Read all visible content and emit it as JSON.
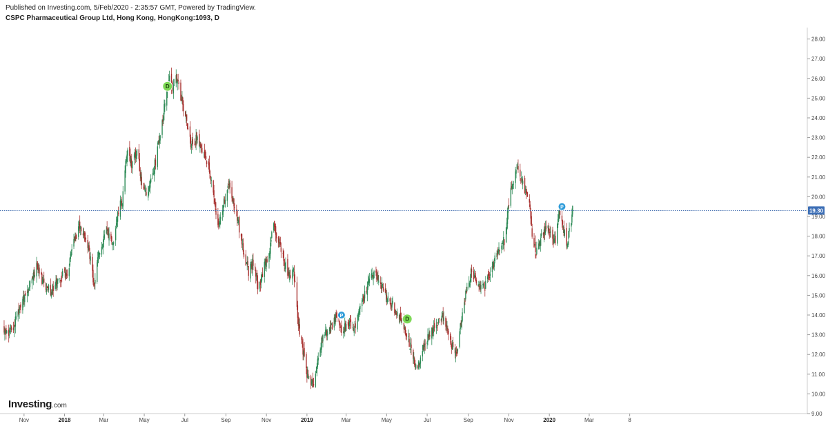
{
  "header": {
    "published": "Published on Investing.com, 5/Feb/2020 - 2:35:57 GMT, Powered by TradingView.",
    "symbol": "CSPC Pharmaceutical Group Ltd, Hong Kong, HongKong:1093, D"
  },
  "logo": {
    "name": "Investing",
    "suffix": ".com"
  },
  "colors": {
    "up": "#2e8b57",
    "down": "#a8312f",
    "price_line": "#2f5fa8",
    "price_label_bg": "#3d6fb6",
    "dividend_marker": "#7ed957",
    "split_marker": "#2e9bd9",
    "axis": "#cccccc"
  },
  "chart_data": {
    "type": "candlestick",
    "timeframe": "D",
    "ylim": [
      9.0,
      28.6
    ],
    "y_ticks": [
      "9.00",
      "10.00",
      "11.00",
      "12.00",
      "13.00",
      "14.00",
      "15.00",
      "16.00",
      "17.00",
      "18.00",
      "19.00",
      "20.00",
      "21.00",
      "22.00",
      "23.00",
      "24.00",
      "25.00",
      "26.00",
      "27.00",
      "28.00"
    ],
    "x_ticks": [
      {
        "label": "Nov",
        "bold": false
      },
      {
        "label": "2018",
        "bold": true
      },
      {
        "label": "Mar",
        "bold": false
      },
      {
        "label": "May",
        "bold": false
      },
      {
        "label": "Jul",
        "bold": false
      },
      {
        "label": "Sep",
        "bold": false
      },
      {
        "label": "Nov",
        "bold": false
      },
      {
        "label": "2019",
        "bold": true
      },
      {
        "label": "Mar",
        "bold": false
      },
      {
        "label": "May",
        "bold": false
      },
      {
        "label": "Jul",
        "bold": false
      },
      {
        "label": "Sep",
        "bold": false
      },
      {
        "label": "Nov",
        "bold": false
      },
      {
        "label": "2020",
        "bold": true
      },
      {
        "label": "Mar",
        "bold": false
      },
      {
        "label": "8",
        "bold": false
      }
    ],
    "last_price": "19.30",
    "price_path": [
      [
        "2017-10-01",
        13.4
      ],
      [
        "2017-10-10",
        13.0
      ],
      [
        "2017-10-25",
        14.2
      ],
      [
        "2017-11-08",
        15.5
      ],
      [
        "2017-11-20",
        16.4
      ],
      [
        "2017-12-01",
        15.6
      ],
      [
        "2017-12-12",
        15.2
      ],
      [
        "2017-12-22",
        15.8
      ],
      [
        "2018-01-05",
        16.2
      ],
      [
        "2018-01-15",
        17.6
      ],
      [
        "2018-01-24",
        18.5
      ],
      [
        "2018-02-02",
        17.9
      ],
      [
        "2018-02-09",
        16.9
      ],
      [
        "2018-02-14",
        15.6
      ],
      [
        "2018-02-22",
        17.2
      ],
      [
        "2018-03-05",
        18.2
      ],
      [
        "2018-03-15",
        17.6
      ],
      [
        "2018-03-22",
        19.3
      ],
      [
        "2018-03-29",
        19.8
      ],
      [
        "2018-04-05",
        22.3
      ],
      [
        "2018-04-12",
        21.6
      ],
      [
        "2018-04-20",
        22.4
      ],
      [
        "2018-04-28",
        20.6
      ],
      [
        "2018-05-05",
        20.1
      ],
      [
        "2018-05-12",
        21.0
      ],
      [
        "2018-05-20",
        22.1
      ],
      [
        "2018-05-28",
        23.8
      ],
      [
        "2018-06-03",
        25.2
      ],
      [
        "2018-06-08",
        26.1
      ],
      [
        "2018-06-13",
        25.4
      ],
      [
        "2018-06-18",
        26.0
      ],
      [
        "2018-06-25",
        25.1
      ],
      [
        "2018-07-02",
        24.2
      ],
      [
        "2018-07-10",
        22.6
      ],
      [
        "2018-07-20",
        23.0
      ],
      [
        "2018-07-28",
        22.4
      ],
      [
        "2018-08-05",
        21.6
      ],
      [
        "2018-08-12",
        20.3
      ],
      [
        "2018-08-20",
        18.7
      ],
      [
        "2018-08-28",
        19.5
      ],
      [
        "2018-09-05",
        20.8
      ],
      [
        "2018-09-12",
        19.9
      ],
      [
        "2018-09-20",
        18.6
      ],
      [
        "2018-09-27",
        17.3
      ],
      [
        "2018-10-05",
        16.2
      ],
      [
        "2018-10-13",
        16.8
      ],
      [
        "2018-10-20",
        15.2
      ],
      [
        "2018-10-28",
        16.4
      ],
      [
        "2018-11-04",
        17.1
      ],
      [
        "2018-11-12",
        18.6
      ],
      [
        "2018-11-20",
        17.6
      ],
      [
        "2018-11-28",
        16.7
      ],
      [
        "2018-12-05",
        15.9
      ],
      [
        "2018-12-12",
        16.3
      ],
      [
        "2018-12-18",
        13.8
      ],
      [
        "2018-12-24",
        12.6
      ],
      [
        "2019-01-01",
        11.0
      ],
      [
        "2019-01-06",
        10.7
      ],
      [
        "2019-01-11",
        10.3
      ],
      [
        "2019-01-17",
        11.8
      ],
      [
        "2019-01-25",
        12.9
      ],
      [
        "2019-02-05",
        13.3
      ],
      [
        "2019-02-14",
        14.0
      ],
      [
        "2019-02-22",
        13.2
      ],
      [
        "2019-03-04",
        13.6
      ],
      [
        "2019-03-14",
        13.4
      ],
      [
        "2019-03-25",
        14.6
      ],
      [
        "2019-04-04",
        15.6
      ],
      [
        "2019-04-12",
        16.2
      ],
      [
        "2019-04-20",
        15.8
      ],
      [
        "2019-04-28",
        15.1
      ],
      [
        "2019-05-10",
        14.5
      ],
      [
        "2019-05-20",
        13.9
      ],
      [
        "2019-05-28",
        13.3
      ],
      [
        "2019-06-06",
        12.4
      ],
      [
        "2019-06-14",
        11.4
      ],
      [
        "2019-06-20",
        11.7
      ],
      [
        "2019-06-28",
        12.6
      ],
      [
        "2019-07-08",
        13.2
      ],
      [
        "2019-07-18",
        13.6
      ],
      [
        "2019-07-26",
        13.9
      ],
      [
        "2019-08-05",
        12.6
      ],
      [
        "2019-08-14",
        12.0
      ],
      [
        "2019-08-22",
        13.8
      ],
      [
        "2019-08-29",
        15.2
      ],
      [
        "2019-09-05",
        16.1
      ],
      [
        "2019-09-15",
        15.6
      ],
      [
        "2019-09-25",
        15.4
      ],
      [
        "2019-10-05",
        16.2
      ],
      [
        "2019-10-15",
        17.2
      ],
      [
        "2019-10-25",
        17.8
      ],
      [
        "2019-11-02",
        20.0
      ],
      [
        "2019-11-10",
        21.1
      ],
      [
        "2019-11-17",
        21.4
      ],
      [
        "2019-11-25",
        20.4
      ],
      [
        "2019-12-02",
        19.6
      ],
      [
        "2019-12-06",
        18.1
      ],
      [
        "2019-12-12",
        17.2
      ],
      [
        "2019-12-20",
        17.9
      ],
      [
        "2019-12-28",
        18.6
      ],
      [
        "2020-01-05",
        18.1
      ],
      [
        "2020-01-10",
        17.6
      ],
      [
        "2020-01-16",
        19.2
      ],
      [
        "2020-01-21",
        18.5
      ],
      [
        "2020-01-27",
        17.6
      ],
      [
        "2020-02-01",
        18.3
      ],
      [
        "2020-02-05",
        19.3
      ]
    ],
    "event_markers": [
      {
        "label": "D",
        "type": "dividend",
        "date": "2018-06-05",
        "price": 25.6
      },
      {
        "label": "P",
        "type": "split",
        "date": "2019-02-22",
        "price": 14.0
      },
      {
        "label": "D",
        "type": "dividend",
        "date": "2019-06-01",
        "price": 13.8
      },
      {
        "label": "P",
        "type": "split",
        "date": "2020-01-20",
        "price": 19.5
      }
    ]
  }
}
